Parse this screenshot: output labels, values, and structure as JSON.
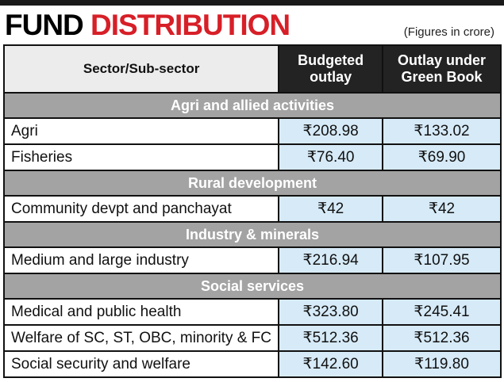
{
  "header": {
    "title_black": "FUND",
    "title_red": "DISTRIBUTION",
    "note": "(Figures in crore)"
  },
  "table": {
    "columns": [
      "Sector/Sub-sector",
      "Budgeted outlay",
      "Outlay under Green Book"
    ],
    "sections": [
      {
        "title": "Agri and allied activities",
        "rows": [
          [
            "Agri",
            "₹208.98",
            "₹133.02"
          ],
          [
            "Fisheries",
            "₹76.40",
            "₹69.90"
          ]
        ]
      },
      {
        "title": "Rural development",
        "rows": [
          [
            "Community devpt and panchayat",
            "₹42",
            "₹42"
          ]
        ]
      },
      {
        "title": "Industry & minerals",
        "rows": [
          [
            "Medium and large industry",
            "₹216.94",
            "₹107.95"
          ]
        ]
      },
      {
        "title": "Social services",
        "rows": [
          [
            "Medical and public health",
            "₹323.80",
            "₹245.41"
          ],
          [
            "Welfare of SC, ST, OBC, minority & FC",
            "₹512.36",
            "₹512.36"
          ],
          [
            "Social security and welfare",
            "₹142.60",
            "₹119.80"
          ]
        ]
      }
    ]
  }
}
